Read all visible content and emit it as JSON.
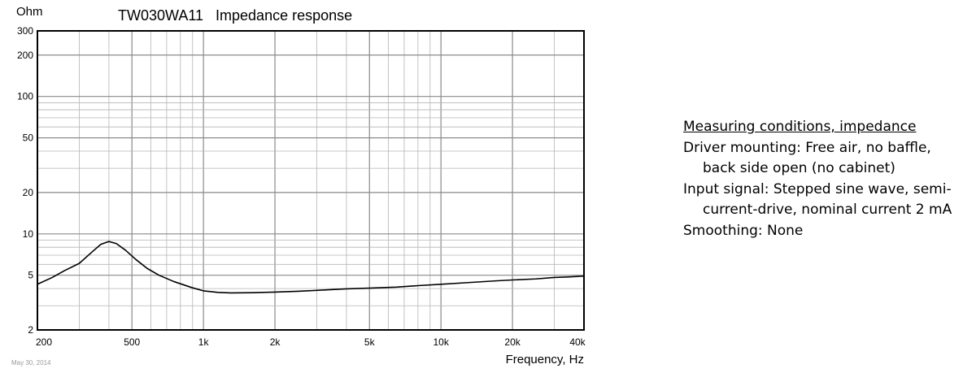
{
  "chart_data": {
    "type": "line",
    "title": "TW030WA11   Impedance response",
    "ylabel": "Ohm",
    "xlabel": "Frequency, Hz",
    "xscale": "log",
    "yscale": "log",
    "xlim": [
      200,
      40000
    ],
    "ylim": [
      2,
      300
    ],
    "grid": true,
    "x_ticks": [
      200,
      500,
      1000,
      2000,
      5000,
      10000,
      20000,
      40000
    ],
    "x_tick_labels": [
      "200",
      "500",
      "1k",
      "2k",
      "5k",
      "10k",
      "20k",
      "40k"
    ],
    "y_ticks": [
      2,
      5,
      10,
      20,
      50,
      100,
      200,
      300
    ],
    "y_tick_labels": [
      "2",
      "5",
      "10",
      "20",
      "50",
      "100",
      "200",
      "300"
    ],
    "series": [
      {
        "color": "#000000",
        "x": [
          200,
          230,
          260,
          300,
          340,
          370,
          400,
          430,
          470,
          520,
          580,
          650,
          750,
          900,
          1000,
          1150,
          1300,
          1600,
          2000,
          2500,
          3000,
          4000,
          5000,
          6500,
          8000,
          10000,
          13000,
          17000,
          20000,
          25000,
          30000,
          35000,
          40000
        ],
        "y": [
          4.3,
          4.8,
          5.4,
          6.1,
          7.4,
          8.4,
          8.8,
          8.5,
          7.6,
          6.5,
          5.6,
          5.0,
          4.5,
          4.05,
          3.85,
          3.75,
          3.72,
          3.73,
          3.77,
          3.82,
          3.88,
          3.98,
          4.03,
          4.1,
          4.2,
          4.3,
          4.42,
          4.55,
          4.62,
          4.7,
          4.82,
          4.87,
          4.93
        ]
      }
    ]
  },
  "date_stamp": "May 30, 2014",
  "notes": {
    "heading": "Measuring conditions, impedance",
    "lines": [
      "Driver mounting: Free air, no baffle,",
      "back side open (no cabinet)",
      "Input signal: Stepped sine wave, semi-",
      "current-drive, nominal current 2 mA",
      "Smoothing: None"
    ]
  }
}
